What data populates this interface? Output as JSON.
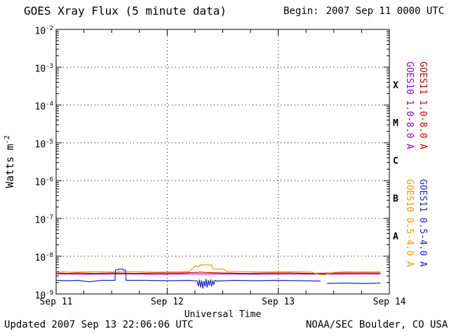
{
  "header": {
    "title": "GOES Xray Flux (5 minute data)",
    "begin_label": "Begin:",
    "begin_value": "2007 Sep 11 0000 UTC"
  },
  "axes": {
    "ylabel_base": "Watts m",
    "ylabel_exp": "-2",
    "xlabel": "Universal Time"
  },
  "footer": {
    "updated": "Updated 2007 Sep 13 22:06:06 UTC",
    "agency": "NOAA/SEC Boulder, CO USA"
  },
  "chart_data": {
    "type": "line",
    "title": "GOES Xray Flux (5 minute data)",
    "xlabel": "Universal Time",
    "ylabel": "Watts m^-2",
    "y_scale": "log10",
    "y_exponent_top": -2,
    "y_exponent_bottom": -9,
    "y_ticks_exponents": [
      -2,
      -3,
      -4,
      -5,
      -6,
      -7,
      -8,
      -9
    ],
    "x_range_days": [
      0,
      3
    ],
    "x_ticks": [
      {
        "t": 0,
        "label": "Sep 11"
      },
      {
        "t": 1,
        "label": "Sep 12"
      },
      {
        "t": 2,
        "label": "Sep 13"
      },
      {
        "t": 3,
        "label": "Sep 14"
      }
    ],
    "grid": {
      "h_exponents": [
        -3,
        -4,
        -5,
        -6,
        -7,
        -8
      ],
      "v_days": [
        1,
        2
      ]
    },
    "flare_classes": [
      {
        "label": "X",
        "exp_center": -3.5
      },
      {
        "label": "M",
        "exp_center": -4.5
      },
      {
        "label": "C",
        "exp_center": -5.5
      },
      {
        "label": "B",
        "exp_center": -6.5
      },
      {
        "label": "A",
        "exp_center": -7.5
      }
    ],
    "series": [
      {
        "id": "goes10-long",
        "name": "GOES10 1.0-8.0 A",
        "color": "#9400d3",
        "points": [
          [
            0,
            3.4e-09
          ],
          [
            0.3,
            3.35e-09
          ],
          [
            0.6,
            3.4e-09
          ],
          [
            0.9,
            3.35e-09
          ],
          [
            1.2,
            3.4e-09
          ],
          [
            1.5,
            3.4e-09
          ],
          [
            1.8,
            3.35e-09
          ],
          [
            2.1,
            3.4e-09
          ],
          [
            2.4,
            3.35e-09
          ],
          [
            2.7,
            3.4e-09
          ],
          [
            2.92,
            3.4e-09
          ]
        ]
      },
      {
        "id": "goes11-long",
        "name": "GOES11 1.0-8.0 A",
        "color": "#cc0000",
        "points": [
          [
            0,
            3.6e-09
          ],
          [
            0.1,
            3.5e-09
          ],
          [
            0.2,
            3.6e-09
          ],
          [
            0.35,
            3.5e-09
          ],
          [
            0.5,
            3.6e-09
          ],
          [
            0.7,
            3.5e-09
          ],
          [
            0.9,
            3.6e-09
          ],
          [
            1.1,
            3.6e-09
          ],
          [
            1.25,
            3.7e-09
          ],
          [
            1.3,
            3.8e-09
          ],
          [
            1.35,
            3.7e-09
          ],
          [
            1.5,
            3.6e-09
          ],
          [
            1.7,
            3.5e-09
          ],
          [
            1.9,
            3.6e-09
          ],
          [
            2.1,
            3.6e-09
          ],
          [
            2.3,
            3.5e-09
          ],
          [
            2.5,
            3.6e-09
          ],
          [
            2.7,
            3.6e-09
          ],
          [
            2.92,
            3.6e-09
          ]
        ]
      },
      {
        "id": "goes10-short",
        "name": "GOES10 0.5-4.0 A",
        "color": "#ff9900",
        "points": [
          [
            0,
            3.9e-09
          ],
          [
            0.15,
            3.8e-09
          ],
          [
            0.3,
            3.9e-09
          ],
          [
            0.5,
            3.85e-09
          ],
          [
            0.7,
            3.9e-09
          ],
          [
            0.9,
            3.8e-09
          ],
          [
            1.1,
            3.9e-09
          ],
          [
            1.2,
            4e-09
          ],
          [
            1.23,
            4.8e-09
          ],
          [
            1.26,
            5.6e-09
          ],
          [
            1.28,
            5.2e-09
          ],
          [
            1.3,
            6e-09
          ],
          [
            1.32,
            5.7e-09
          ],
          [
            1.34,
            6.1e-09
          ],
          [
            1.37,
            5.9e-09
          ],
          [
            1.4,
            5.8e-09
          ],
          [
            1.41,
            4.6e-09
          ],
          [
            1.45,
            4.5e-09
          ],
          [
            1.48,
            4.7e-09
          ],
          [
            1.52,
            4.4e-09
          ],
          [
            1.54,
            3.9e-09
          ],
          [
            1.7,
            3.9e-09
          ],
          [
            1.9,
            3.85e-09
          ],
          [
            2.1,
            3.9e-09
          ],
          [
            2.3,
            3.8e-09
          ],
          [
            2.36,
            3.3e-09
          ],
          [
            2.42,
            3.2e-09
          ],
          [
            2.48,
            3.7e-09
          ],
          [
            2.6,
            3.9e-09
          ],
          [
            2.8,
            3.85e-09
          ],
          [
            2.92,
            3.9e-09
          ]
        ]
      },
      {
        "id": "goes11-short",
        "name": "GOES11 0.5-4.0 A",
        "color": "#2222cc",
        "points": [
          [
            0,
            2.3e-09
          ],
          [
            0.1,
            2.25e-09
          ],
          [
            0.2,
            2.3e-09
          ],
          [
            0.3,
            2.1e-09
          ],
          [
            0.4,
            2.3e-09
          ],
          [
            0.53,
            2.3e-09
          ],
          [
            0.535,
            4.4e-09
          ],
          [
            0.56,
            4.4e-09
          ],
          [
            0.565,
            4.6e-09
          ],
          [
            0.6,
            4.6e-09
          ],
          [
            0.605,
            4.3e-09
          ],
          [
            0.625,
            4.3e-09
          ],
          [
            0.63,
            2.3e-09
          ],
          [
            0.8,
            2.3e-09
          ],
          [
            1.0,
            2.25e-09
          ],
          [
            1.2,
            2.3e-09
          ],
          [
            1.27,
            2.2e-09
          ],
          [
            1.28,
            1.6e-09
          ],
          [
            1.29,
            2.4e-09
          ],
          [
            1.3,
            1.5e-09
          ],
          [
            1.31,
            2.3e-09
          ],
          [
            1.32,
            1.4e-09
          ],
          [
            1.33,
            2.2e-09
          ],
          [
            1.34,
            1.6e-09
          ],
          [
            1.35,
            2.5e-09
          ],
          [
            1.36,
            1.5e-09
          ],
          [
            1.37,
            2.3e-09
          ],
          [
            1.38,
            1.7e-09
          ],
          [
            1.39,
            2.4e-09
          ],
          [
            1.4,
            1.6e-09
          ],
          [
            1.41,
            2.2e-09
          ],
          [
            1.42,
            1.8e-09
          ],
          [
            1.43,
            2.3e-09
          ],
          [
            1.45,
            2.2e-09
          ],
          [
            1.6,
            2.3e-09
          ],
          [
            1.8,
            2.25e-09
          ],
          [
            2.0,
            2.3e-09
          ],
          [
            2.2,
            2.25e-09
          ],
          [
            2.38,
            2.2e-09
          ],
          null,
          [
            2.44,
            1.9e-09
          ],
          [
            2.6,
            1.95e-09
          ],
          [
            2.8,
            1.9e-09
          ],
          [
            2.92,
            1.95e-09
          ]
        ]
      }
    ]
  }
}
